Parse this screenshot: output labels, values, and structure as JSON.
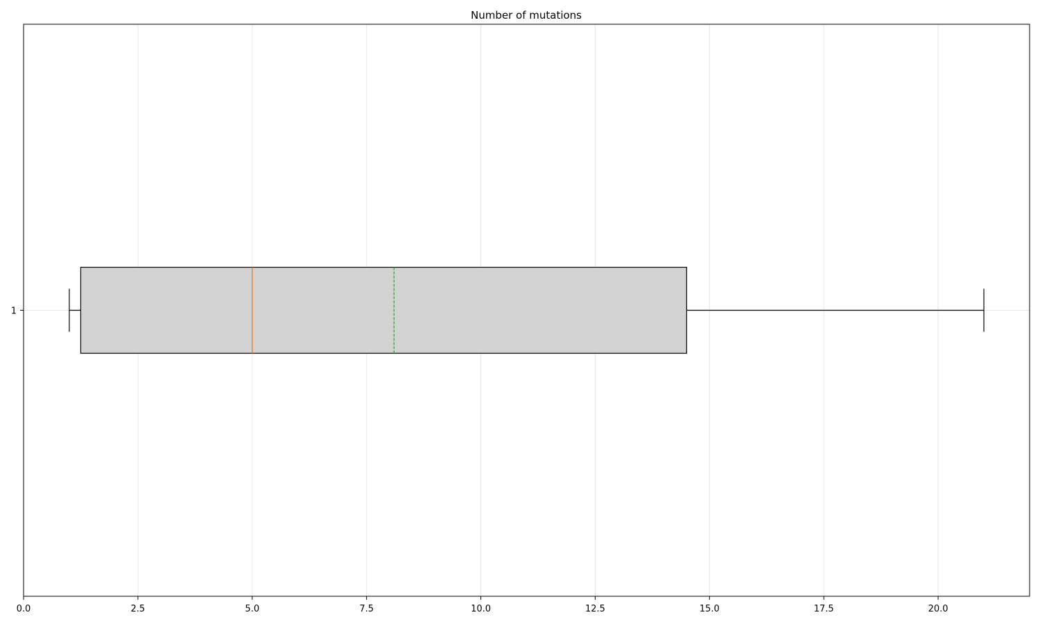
{
  "chart_data": {
    "type": "boxplot",
    "orientation": "horizontal",
    "title": "Number of mutations",
    "xlabel": "",
    "ylabel": "",
    "xlim": [
      0,
      22
    ],
    "x_ticks": [
      0.0,
      2.5,
      5.0,
      7.5,
      10.0,
      12.5,
      15.0,
      17.5,
      20.0
    ],
    "x_tick_labels": [
      "0.0",
      "2.5",
      "5.0",
      "7.5",
      "10.0",
      "12.5",
      "15.0",
      "17.5",
      "20.0"
    ],
    "categories": [
      "1"
    ],
    "boxes": [
      {
        "category": "1",
        "whisker_low": 1.0,
        "q1": 1.25,
        "median": 5.0,
        "mean": 8.1,
        "q3": 14.5,
        "whisker_high": 21.0
      }
    ],
    "grid": true,
    "colors": {
      "box_fill": "#d3d3d3",
      "box_edge": "#000000",
      "median": "#ff7f0e",
      "mean": "#2ca02c",
      "grid": "#e6e6e6"
    }
  }
}
